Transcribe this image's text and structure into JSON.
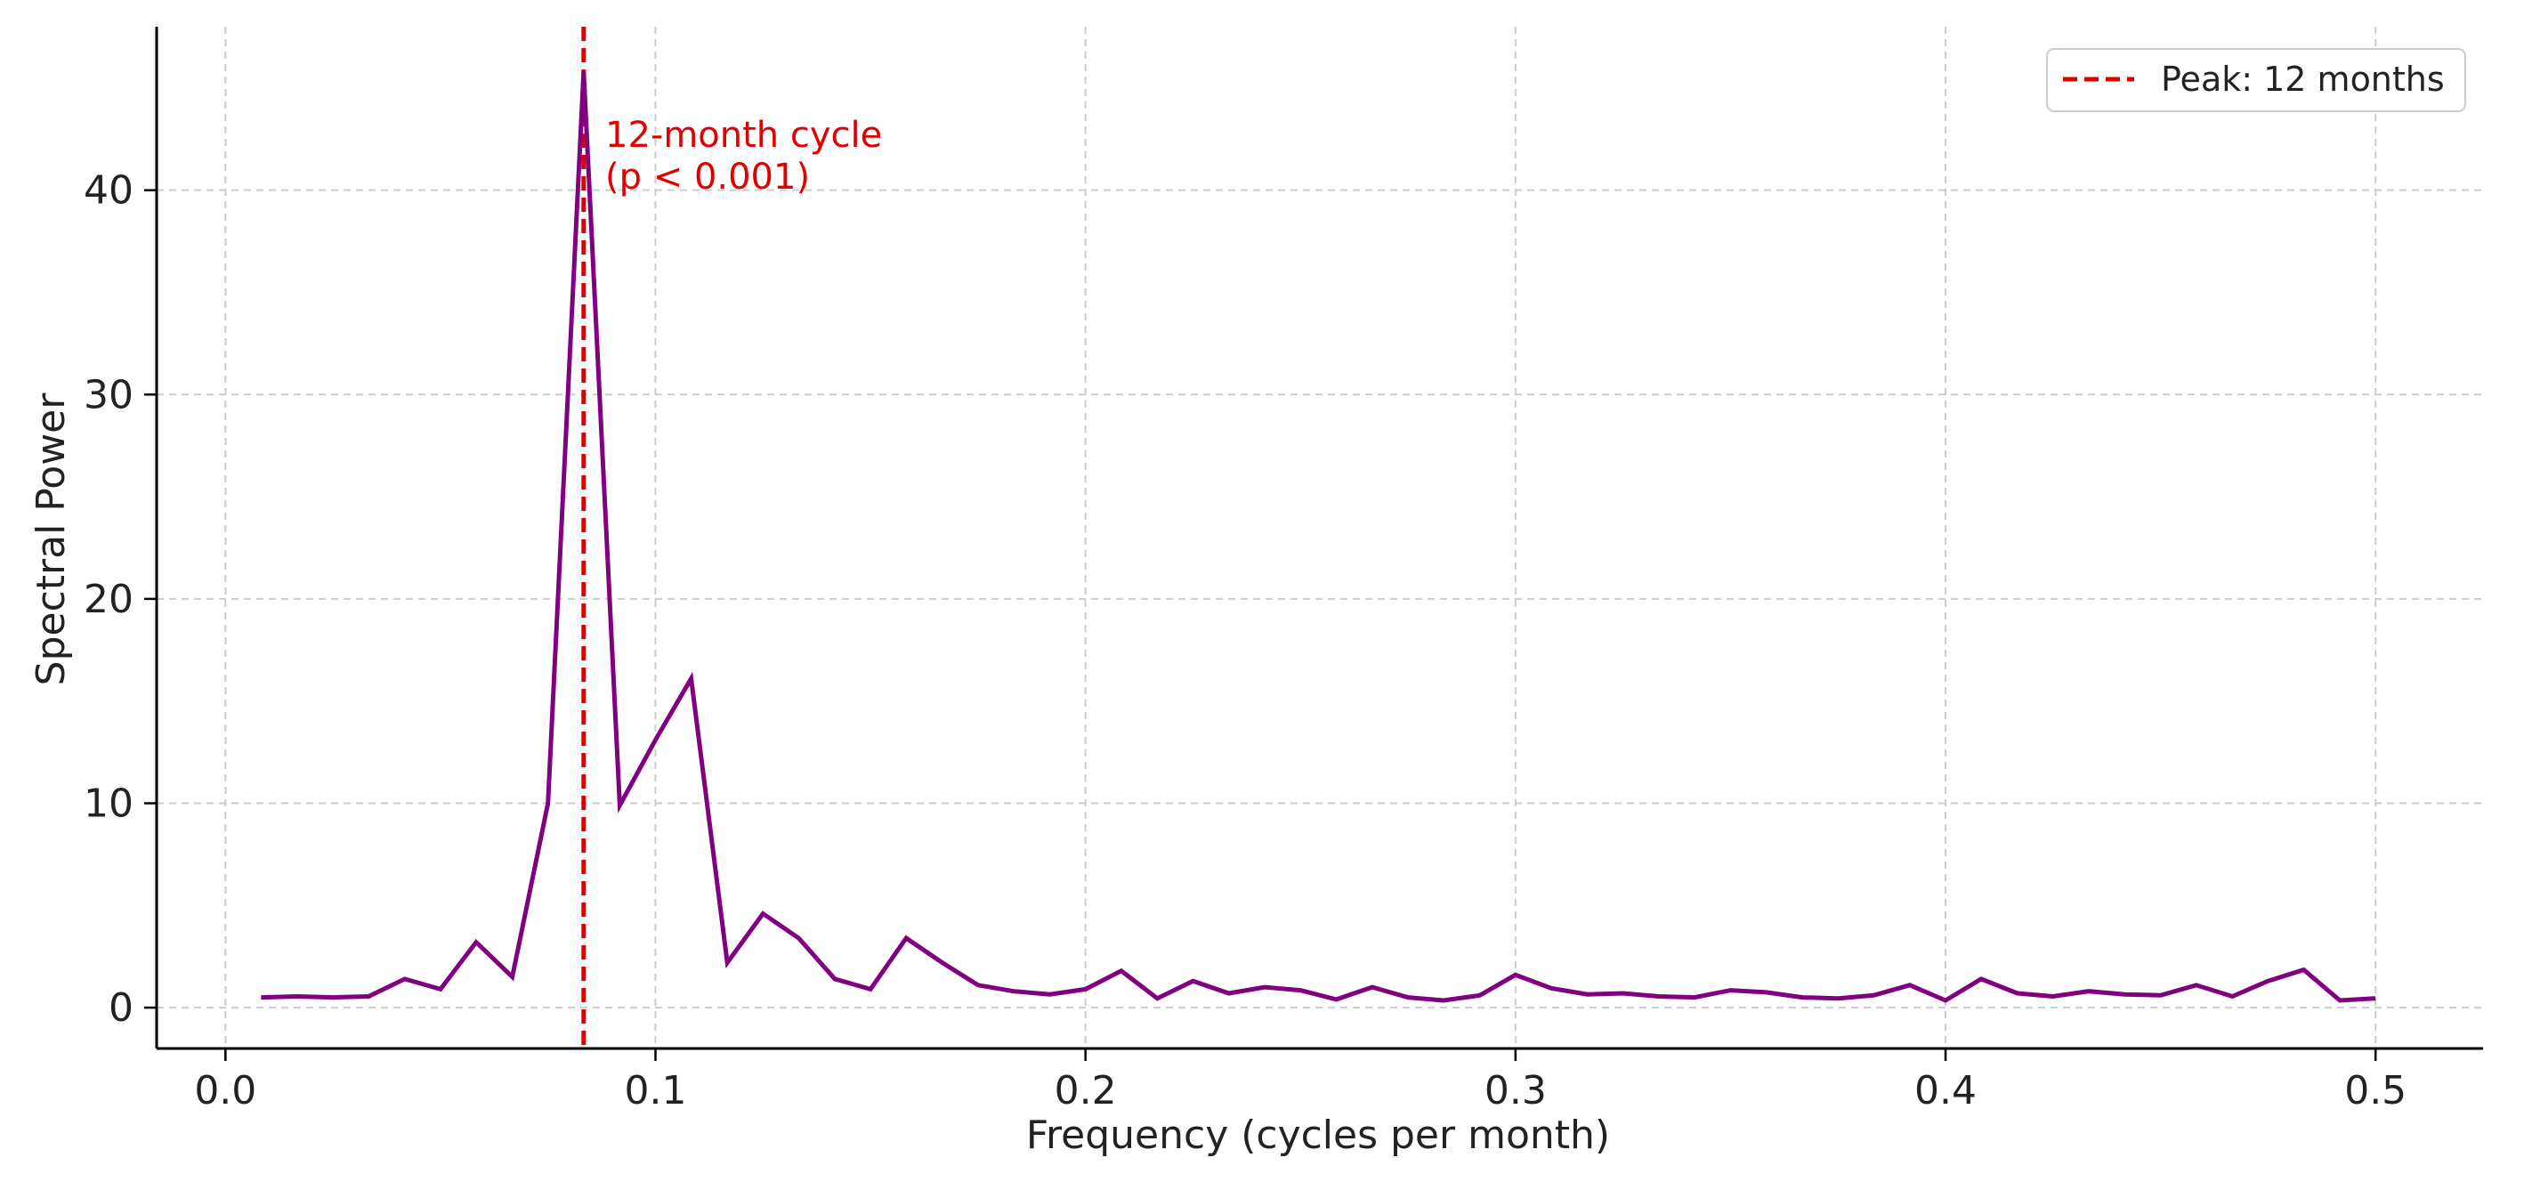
{
  "chart_data": {
    "type": "line",
    "title": "",
    "xlabel": "Frequency (cycles per month)",
    "ylabel": "Spectral Power",
    "xlim": [
      -0.016,
      0.525
    ],
    "ylim": [
      -2,
      48
    ],
    "xticks": [
      0.0,
      0.1,
      0.2,
      0.3,
      0.4,
      0.5
    ],
    "xtick_labels": [
      "0.0",
      "0.1",
      "0.2",
      "0.3",
      "0.4",
      "0.5"
    ],
    "yticks": [
      0,
      10,
      20,
      30,
      40
    ],
    "ytick_labels": [
      "0",
      "10",
      "20",
      "30",
      "40"
    ],
    "grid": true,
    "legend_position": "top-right",
    "colors": {
      "series": "#800080",
      "peak_line": "#e00000",
      "annotation": "#e00000",
      "grid": "#cccccc",
      "axis": "#000000",
      "text": "#222222"
    },
    "series": [
      {
        "x": [
          0.0083,
          0.0167,
          0.025,
          0.0333,
          0.0417,
          0.05,
          0.0583,
          0.0667,
          0.075,
          0.0833,
          0.0917,
          0.1,
          0.1083,
          0.1167,
          0.125,
          0.1333,
          0.1417,
          0.15,
          0.1583,
          0.1667,
          0.175,
          0.1833,
          0.1917,
          0.2,
          0.2083,
          0.2167,
          0.225,
          0.2333,
          0.2417,
          0.25,
          0.2583,
          0.2667,
          0.275,
          0.2833,
          0.2917,
          0.3,
          0.3083,
          0.3167,
          0.325,
          0.3333,
          0.3417,
          0.35,
          0.3583,
          0.3667,
          0.375,
          0.3833,
          0.3917,
          0.4,
          0.4083,
          0.4167,
          0.425,
          0.4333,
          0.4417,
          0.45,
          0.4583,
          0.4667,
          0.475,
          0.4833,
          0.4917,
          0.5
        ],
        "y": [
          0.5,
          0.55,
          0.5,
          0.55,
          1.4,
          0.9,
          3.2,
          1.5,
          10.0,
          45.8,
          9.9,
          13.1,
          16.1,
          2.2,
          4.6,
          3.4,
          1.4,
          0.9,
          3.4,
          2.2,
          1.1,
          0.8,
          0.65,
          0.9,
          1.8,
          0.45,
          1.3,
          0.7,
          1.0,
          0.85,
          0.4,
          1.0,
          0.5,
          0.35,
          0.6,
          1.6,
          0.95,
          0.65,
          0.7,
          0.55,
          0.5,
          0.85,
          0.75,
          0.5,
          0.45,
          0.6,
          1.1,
          0.35,
          1.4,
          0.7,
          0.55,
          0.8,
          0.65,
          0.6,
          1.1,
          0.55,
          1.3,
          1.85,
          0.35,
          0.45
        ]
      }
    ],
    "peak_line": {
      "x": 0.0833,
      "legend_label": "Peak: 12 months"
    },
    "annotation": {
      "x": 0.0833,
      "y": 40,
      "lines": [
        "12-month cycle",
        "(p < 0.001)"
      ]
    }
  }
}
